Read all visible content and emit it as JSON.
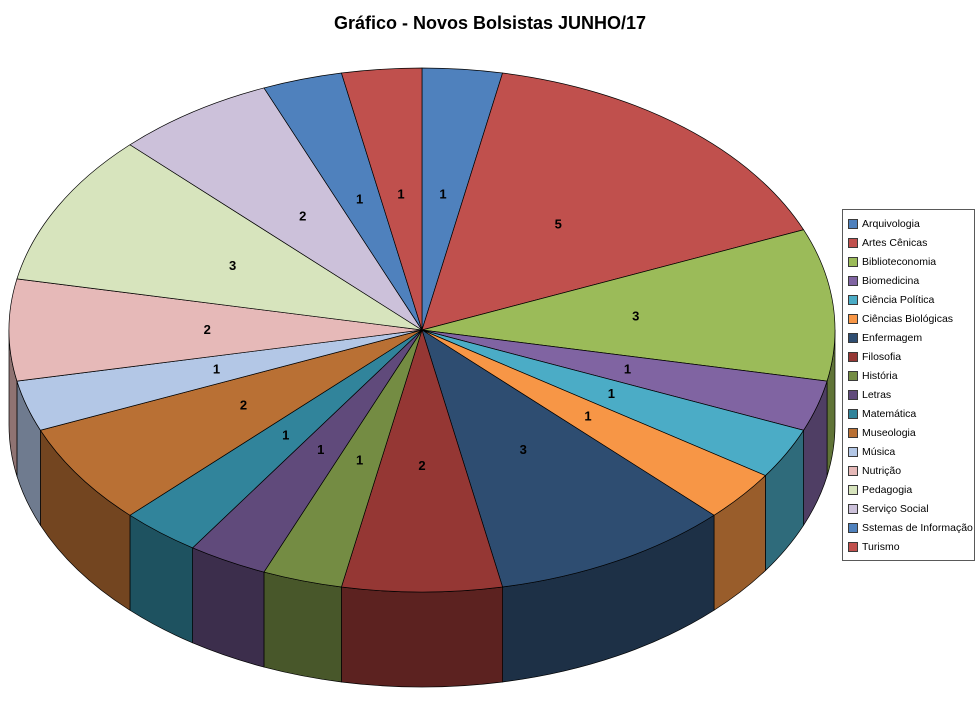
{
  "chart_data": {
    "type": "pie",
    "projection": "3d",
    "title": "Gráfico - Novos Bolsistas JUNHO/17",
    "legend_position": "right",
    "data_labels": "value",
    "total": 32,
    "background_color": "#FFFFFF",
    "categories": [
      "Arquivologia",
      "Artes Cênicas",
      "Biblioteconomia",
      "Biomedicina",
      "Ciência Política",
      "Ciências Biológicas",
      "Enfermagem",
      "Filosofia",
      "História",
      "Letras",
      "Matemática",
      "Museologia",
      "Música",
      "Nutrição",
      "Pedagogia",
      "Serviço Social",
      "Sstemas de Informação",
      "Turismo"
    ],
    "values": [
      1,
      5,
      3,
      1,
      1,
      1,
      3,
      2,
      1,
      1,
      1,
      2,
      1,
      2,
      3,
      2,
      1,
      1
    ],
    "colors": [
      "#4F81BD",
      "#C0504D",
      "#9BBB59",
      "#8064A2",
      "#4BACC6",
      "#F79646",
      "#2E4D71",
      "#953734",
      "#748C43",
      "#604A7B",
      "#31849B",
      "#B97034",
      "#B3C7E6",
      "#E6B9B8",
      "#D7E4BD",
      "#CCC1DA",
      "#4F81BD",
      "#C0504D"
    ]
  }
}
